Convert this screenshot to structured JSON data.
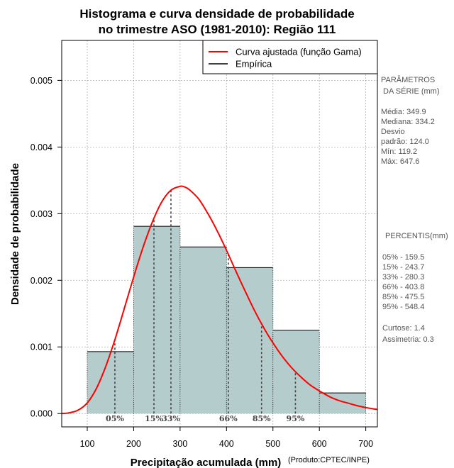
{
  "chart_data": {
    "type": "histogram",
    "title_line1": "Histograma e curva densidade de probabilidade",
    "title_line2": "no trimestre ASO (1981-2010): Região 111",
    "xlabel": "Precipitação acumulada (mm)",
    "ylabel": "Densidade de probabilidade",
    "credit": "(Produto:CPTEC/INPE)",
    "xlim": [
      45,
      725
    ],
    "ylim": [
      -0.0002,
      0.0056
    ],
    "x_ticks": [
      100,
      200,
      300,
      400,
      500,
      600,
      700
    ],
    "x_tick_labels": [
      "100",
      "200",
      "300",
      "400",
      "500",
      "600",
      "700"
    ],
    "y_ticks": [
      0.0,
      0.001,
      0.002,
      0.003,
      0.004,
      0.005
    ],
    "y_tick_labels": [
      "0.000",
      "0.001",
      "0.002",
      "0.003",
      "0.004",
      "0.005"
    ],
    "grid": true,
    "bins": [
      {
        "start": 100,
        "end": 200,
        "density": 0.00093
      },
      {
        "start": 200,
        "end": 300,
        "density": 0.00281
      },
      {
        "start": 300,
        "end": 400,
        "density": 0.0025
      },
      {
        "start": 400,
        "end": 500,
        "density": 0.00219
      },
      {
        "start": 500,
        "end": 600,
        "density": 0.00125
      },
      {
        "start": 600,
        "end": 700,
        "density": 0.00031
      }
    ],
    "curve": {
      "name": "Curva ajustada (função Gama)",
      "x": [
        45,
        60,
        80,
        100,
        120,
        140,
        160,
        180,
        200,
        220,
        240,
        260,
        280,
        300,
        310,
        320,
        340,
        360,
        380,
        400,
        420,
        440,
        460,
        480,
        500,
        520,
        540,
        560,
        580,
        600,
        620,
        640,
        660,
        680,
        700,
        725
      ],
      "y": [
        0.0,
        1e-05,
        5e-05,
        0.00016,
        0.00038,
        0.00071,
        0.00112,
        0.00158,
        0.00205,
        0.00249,
        0.00287,
        0.00317,
        0.00335,
        0.00341,
        0.0034,
        0.00336,
        0.00322,
        0.003,
        0.00274,
        0.00245,
        0.00214,
        0.00184,
        0.00155,
        0.00129,
        0.00106,
        0.00086,
        0.00069,
        0.00055,
        0.00043,
        0.00034,
        0.00026,
        0.0002,
        0.00016,
        0.00012,
        9e-05,
        6e-05
      ]
    },
    "legend": [
      {
        "label": "Curva ajustada (função Gama)",
        "color": "#ff0000"
      },
      {
        "label": "Empírica",
        "color": "#000000"
      }
    ],
    "percentile_lines": [
      {
        "label": "05%",
        "x": 159.5
      },
      {
        "label": "15%",
        "x": 243.7
      },
      {
        "label": "33%",
        "x": 280.3
      },
      {
        "label": "66%",
        "x": 403.8
      },
      {
        "label": "85%",
        "x": 475.5
      },
      {
        "label": "95%",
        "x": 548.4
      }
    ],
    "colors": {
      "bar_fill": "#b4cccc",
      "curve": "#ff0000",
      "grid": "#b0b0b0",
      "side_text": "#555555"
    }
  },
  "side_panel": {
    "params_title_1": "PARÂMETROS",
    "params_title_2": " DA SÉRIE (mm)",
    "params": [
      "Média:  349.9",
      "Mediana:  334.2",
      "Desvio",
      "padrão:  124.0",
      "Mín:  119.2",
      "Máx:  647.6"
    ],
    "percentis_title": "PERCENTIS(mm)",
    "percentis": [
      "05% -  159.5",
      "15% -  243.7",
      "33% -  280.3",
      "66% -  403.8",
      "85% -  475.5",
      "95% -  548.4"
    ],
    "stats": [
      "Curtose:  1.4",
      "Assimetria:  0.3"
    ]
  }
}
